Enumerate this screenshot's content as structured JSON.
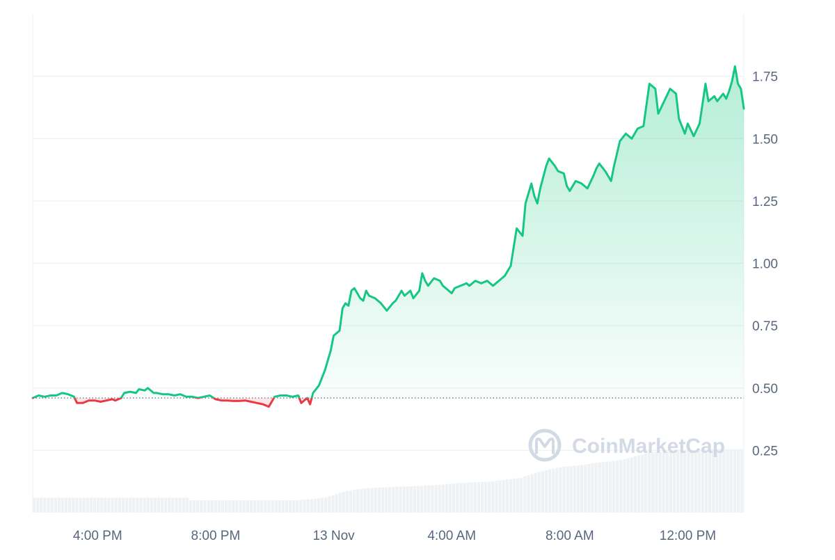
{
  "chart_data": {
    "type": "line",
    "watermark": "CoinMarketCap",
    "xlabel": "",
    "ylabel": "",
    "x_ticks": [
      {
        "t": 16,
        "label": "4:00 PM"
      },
      {
        "t": 20,
        "label": "8:00 PM"
      },
      {
        "t": 24,
        "label": "13 Nov"
      },
      {
        "t": 28,
        "label": "4:00 AM"
      },
      {
        "t": 32,
        "label": "8:00 AM"
      },
      {
        "t": 36,
        "label": "12:00 PM"
      }
    ],
    "y_ticks": [
      {
        "v": 0.25,
        "label": "0.25"
      },
      {
        "v": 0.5,
        "label": "0.50"
      },
      {
        "v": 0.75,
        "label": "0.75"
      },
      {
        "v": 1.0,
        "label": "1.00"
      },
      {
        "v": 1.25,
        "label": "1.25"
      },
      {
        "v": 1.5,
        "label": "1.50"
      },
      {
        "v": 1.75,
        "label": "1.75"
      }
    ],
    "ylim": [
      0.0,
      2.0
    ],
    "xlim": [
      13.8,
      37.9
    ],
    "baseline": 0.46,
    "colors": {
      "up": "#16c784",
      "down": "#ea3943",
      "grid": "#eff2f5",
      "volume": "#eff2f5"
    },
    "grid": true,
    "series": [
      {
        "values": [
          [
            13.8,
            0.46
          ],
          [
            14.0,
            0.47
          ],
          [
            14.2,
            0.465
          ],
          [
            14.4,
            0.47
          ],
          [
            14.6,
            0.47
          ],
          [
            14.8,
            0.48
          ],
          [
            15.0,
            0.475
          ],
          [
            15.2,
            0.465
          ],
          [
            15.3,
            0.44
          ],
          [
            15.5,
            0.44
          ],
          [
            15.7,
            0.45
          ],
          [
            15.9,
            0.45
          ],
          [
            16.1,
            0.445
          ],
          [
            16.3,
            0.45
          ],
          [
            16.5,
            0.455
          ],
          [
            16.6,
            0.45
          ],
          [
            16.8,
            0.46
          ],
          [
            16.9,
            0.48
          ],
          [
            17.1,
            0.485
          ],
          [
            17.3,
            0.48
          ],
          [
            17.4,
            0.495
          ],
          [
            17.6,
            0.49
          ],
          [
            17.7,
            0.5
          ],
          [
            17.9,
            0.48
          ],
          [
            18.0,
            0.48
          ],
          [
            18.2,
            0.475
          ],
          [
            18.4,
            0.475
          ],
          [
            18.6,
            0.47
          ],
          [
            18.8,
            0.475
          ],
          [
            19.0,
            0.465
          ],
          [
            19.2,
            0.465
          ],
          [
            19.4,
            0.46
          ],
          [
            19.6,
            0.465
          ],
          [
            19.8,
            0.47
          ],
          [
            20.0,
            0.455
          ],
          [
            20.2,
            0.45
          ],
          [
            20.4,
            0.45
          ],
          [
            20.6,
            0.448
          ],
          [
            20.8,
            0.448
          ],
          [
            21.0,
            0.45
          ],
          [
            21.2,
            0.445
          ],
          [
            21.4,
            0.44
          ],
          [
            21.6,
            0.435
          ],
          [
            21.8,
            0.425
          ],
          [
            22.0,
            0.465
          ],
          [
            22.2,
            0.47
          ],
          [
            22.4,
            0.47
          ],
          [
            22.6,
            0.465
          ],
          [
            22.8,
            0.47
          ],
          [
            22.9,
            0.44
          ],
          [
            23.1,
            0.46
          ],
          [
            23.2,
            0.435
          ],
          [
            23.3,
            0.48
          ],
          [
            23.5,
            0.51
          ],
          [
            23.7,
            0.57
          ],
          [
            23.9,
            0.65
          ],
          [
            24.0,
            0.71
          ],
          [
            24.2,
            0.73
          ],
          [
            24.3,
            0.82
          ],
          [
            24.4,
            0.84
          ],
          [
            24.5,
            0.83
          ],
          [
            24.6,
            0.89
          ],
          [
            24.7,
            0.9
          ],
          [
            24.8,
            0.88
          ],
          [
            24.9,
            0.86
          ],
          [
            25.0,
            0.85
          ],
          [
            25.1,
            0.89
          ],
          [
            25.2,
            0.87
          ],
          [
            25.4,
            0.86
          ],
          [
            25.6,
            0.84
          ],
          [
            25.8,
            0.81
          ],
          [
            26.0,
            0.84
          ],
          [
            26.1,
            0.85
          ],
          [
            26.3,
            0.89
          ],
          [
            26.4,
            0.87
          ],
          [
            26.6,
            0.89
          ],
          [
            26.7,
            0.86
          ],
          [
            26.9,
            0.89
          ],
          [
            27.0,
            0.96
          ],
          [
            27.1,
            0.93
          ],
          [
            27.2,
            0.91
          ],
          [
            27.4,
            0.94
          ],
          [
            27.6,
            0.93
          ],
          [
            27.7,
            0.91
          ],
          [
            28.0,
            0.88
          ],
          [
            28.1,
            0.9
          ],
          [
            28.3,
            0.91
          ],
          [
            28.5,
            0.92
          ],
          [
            28.6,
            0.91
          ],
          [
            28.8,
            0.93
          ],
          [
            29.0,
            0.92
          ],
          [
            29.2,
            0.93
          ],
          [
            29.4,
            0.91
          ],
          [
            29.6,
            0.93
          ],
          [
            29.8,
            0.95
          ],
          [
            30.0,
            0.99
          ],
          [
            30.2,
            1.14
          ],
          [
            30.4,
            1.11
          ],
          [
            30.5,
            1.24
          ],
          [
            30.7,
            1.32
          ],
          [
            30.8,
            1.27
          ],
          [
            30.9,
            1.24
          ],
          [
            31.0,
            1.3
          ],
          [
            31.2,
            1.39
          ],
          [
            31.3,
            1.42
          ],
          [
            31.5,
            1.39
          ],
          [
            31.6,
            1.37
          ],
          [
            31.8,
            1.36
          ],
          [
            31.9,
            1.31
          ],
          [
            32.0,
            1.29
          ],
          [
            32.2,
            1.33
          ],
          [
            32.4,
            1.32
          ],
          [
            32.6,
            1.3
          ],
          [
            32.8,
            1.35
          ],
          [
            32.9,
            1.38
          ],
          [
            33.0,
            1.4
          ],
          [
            33.2,
            1.37
          ],
          [
            33.4,
            1.33
          ],
          [
            33.5,
            1.39
          ],
          [
            33.7,
            1.49
          ],
          [
            33.9,
            1.52
          ],
          [
            34.1,
            1.5
          ],
          [
            34.2,
            1.52
          ],
          [
            34.3,
            1.54
          ],
          [
            34.5,
            1.55
          ],
          [
            34.7,
            1.72
          ],
          [
            34.9,
            1.7
          ],
          [
            35.0,
            1.6
          ],
          [
            35.2,
            1.65
          ],
          [
            35.4,
            1.7
          ],
          [
            35.6,
            1.68
          ],
          [
            35.7,
            1.58
          ],
          [
            35.9,
            1.52
          ],
          [
            36.0,
            1.56
          ],
          [
            36.2,
            1.51
          ],
          [
            36.4,
            1.56
          ],
          [
            36.6,
            1.72
          ],
          [
            36.7,
            1.65
          ],
          [
            36.9,
            1.67
          ],
          [
            37.0,
            1.65
          ],
          [
            37.2,
            1.68
          ],
          [
            37.3,
            1.66
          ],
          [
            37.4,
            1.69
          ],
          [
            37.5,
            1.73
          ],
          [
            37.6,
            1.79
          ],
          [
            37.7,
            1.72
          ],
          [
            37.8,
            1.7
          ],
          [
            37.9,
            1.62
          ]
        ]
      }
    ],
    "volume_profile": [
      [
        13.8,
        0.06
      ],
      [
        19.0,
        0.06
      ],
      [
        19.1,
        0.05
      ],
      [
        22.6,
        0.05
      ],
      [
        22.7,
        0.05
      ],
      [
        23.3,
        0.055
      ],
      [
        23.8,
        0.065
      ],
      [
        24.3,
        0.085
      ],
      [
        24.8,
        0.095
      ],
      [
        25.3,
        0.1
      ],
      [
        26.3,
        0.105
      ],
      [
        27.3,
        0.11
      ],
      [
        28.3,
        0.12
      ],
      [
        29.3,
        0.125
      ],
      [
        30.3,
        0.14
      ],
      [
        30.8,
        0.16
      ],
      [
        31.3,
        0.175
      ],
      [
        31.8,
        0.185
      ],
      [
        32.3,
        0.19
      ],
      [
        32.8,
        0.2
      ],
      [
        33.3,
        0.205
      ],
      [
        33.8,
        0.215
      ],
      [
        34.3,
        0.23
      ],
      [
        34.8,
        0.245
      ],
      [
        35.3,
        0.245
      ],
      [
        36.0,
        0.25
      ],
      [
        37.0,
        0.255
      ],
      [
        37.9,
        0.255
      ]
    ]
  }
}
